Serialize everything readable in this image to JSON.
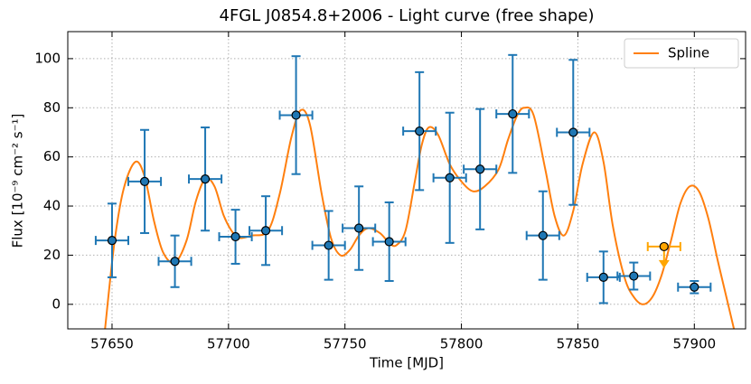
{
  "chart_data": {
    "type": "scatter",
    "title": "4FGL J0854.8+2006 - Light curve (free shape)",
    "x_label": "Time [MJD]",
    "y_label": "Flux [10⁻⁹ cm⁻² s⁻¹]",
    "xlim": [
      57631,
      57922
    ],
    "ylim": [
      -10,
      111
    ],
    "xticks": [
      57650,
      57700,
      57750,
      57800,
      57850,
      57900
    ],
    "yticks": [
      0,
      20,
      40,
      60,
      80,
      100
    ],
    "grid": true,
    "legend": "upper right",
    "series": [
      {
        "name": "Spline",
        "color": "#ff7f0e",
        "x": [
          57647,
          57651,
          57655,
          57660,
          57664,
          57668,
          57672,
          57677,
          57682,
          57686,
          57690,
          57694,
          57698,
          57702,
          57705,
          57710,
          57717,
          57722,
          57727,
          57731,
          57735,
          57740,
          57744,
          57748,
          57752,
          57756,
          57760,
          57765,
          57769,
          57772,
          57776,
          57780,
          57783,
          57786,
          57790,
          57795,
          57800,
          57805,
          57810,
          57816,
          57820,
          57824,
          57827,
          57831,
          57836,
          57840,
          57844,
          57848,
          57852,
          57857,
          57861,
          57865,
          57870,
          57874,
          57878,
          57882,
          57886,
          57890,
          57894,
          57898,
          57902,
          57906,
          57910,
          57914,
          57917
        ],
        "values": [
          -10,
          25,
          47,
          58,
          52,
          34,
          21,
          17,
          26,
          42,
          51,
          48,
          36,
          29,
          27,
          28,
          30,
          45,
          68,
          79,
          73,
          45,
          27,
          20,
          22,
          28,
          31,
          29,
          25,
          24,
          30,
          50,
          65,
          72,
          69,
          57,
          50,
          46,
          48,
          55,
          67,
          77,
          80,
          77,
          55,
          36,
          28,
          38,
          57,
          70,
          58,
          32,
          11,
          3,
          0,
          3,
          12,
          26,
          41,
          48,
          46,
          35,
          18,
          2,
          -10
        ]
      }
    ],
    "points": {
      "color": "#1f77b4",
      "x": [
        57650,
        57664,
        57677,
        57690,
        57703,
        57716,
        57729,
        57743,
        57756,
        57769,
        57782,
        57795,
        57808,
        57822,
        57835,
        57848,
        57861,
        57874,
        57900
      ],
      "xerr": [
        7,
        7,
        7,
        7,
        7,
        7,
        7,
        7,
        7,
        7,
        7,
        7,
        7,
        7,
        7,
        7,
        7,
        7,
        7
      ],
      "values": [
        26,
        50,
        17.5,
        51,
        27.5,
        30,
        77,
        24,
        31,
        25.5,
        70.5,
        51.5,
        55,
        77.5,
        28,
        70,
        11,
        11.5,
        7
      ],
      "yerr": [
        15,
        21,
        10.5,
        21,
        11,
        14,
        24,
        14,
        17,
        16,
        24,
        26.5,
        24.5,
        24,
        18,
        29.5,
        10.5,
        5.5,
        2.5
      ]
    },
    "upper_limit": {
      "color": "#ffa500",
      "x": 57887,
      "xerr": 7,
      "value": 23.5
    }
  }
}
